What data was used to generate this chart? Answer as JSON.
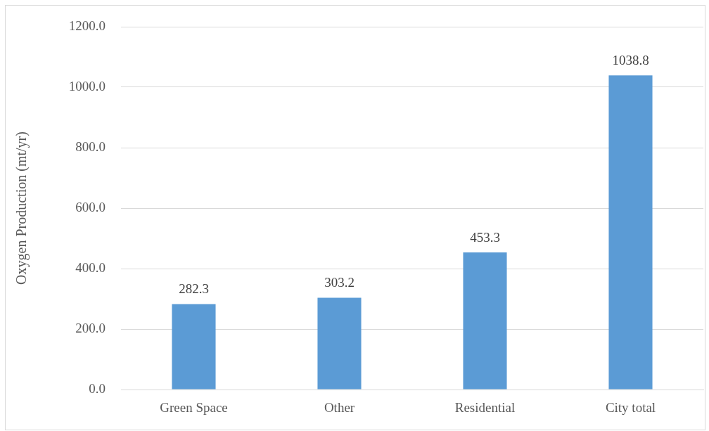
{
  "chart_data": {
    "type": "bar",
    "ylabel": "Oxygen Production (mt/yr)",
    "categories": [
      "Green Space",
      "Other",
      "Residential",
      "City total"
    ],
    "values": [
      282.3,
      303.2,
      453.3,
      1038.8
    ],
    "color": "#5b9bd5",
    "ylim": [
      0,
      1200
    ],
    "yticks": [
      {
        "value": 0,
        "label": "0.0"
      },
      {
        "value": 200,
        "label": "200.0"
      },
      {
        "value": 400,
        "label": "400.0"
      },
      {
        "value": 600,
        "label": "600.0"
      },
      {
        "value": 800,
        "label": "800.0"
      },
      {
        "value": 1000,
        "label": "1000.0"
      },
      {
        "value": 1200,
        "label": "1200.0"
      }
    ],
    "grid": "y",
    "data_labels": true
  }
}
